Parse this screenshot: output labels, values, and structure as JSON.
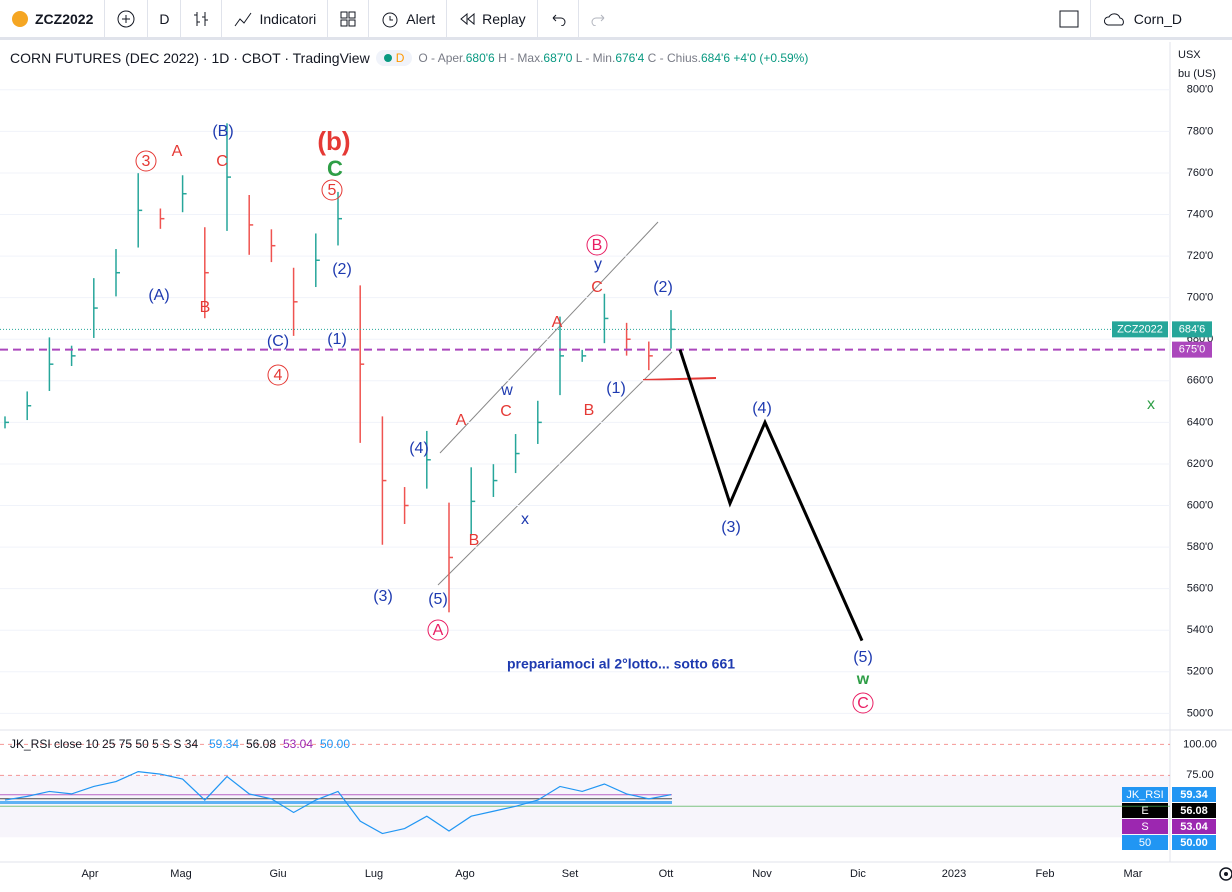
{
  "toolbar": {
    "symbol": "ZCZ2022",
    "interval": "D",
    "indicators": "Indicatori",
    "alert": "Alert",
    "replay": "Replay",
    "layout": "Corn_D"
  },
  "legend": {
    "title": "CORN FUTURES (DEC 2022) · 1D · CBOT · TradingView",
    "badge": "D",
    "open_label": "O - Aper.",
    "open": "680'6",
    "high_label": "H - Max.",
    "high": "687'0",
    "low_label": "L - Min.",
    "low": "676'4",
    "close_label": "C - Chius.",
    "close": "684'6",
    "change": "+4'0 (+0.59%)"
  },
  "price": {
    "currency": "USX",
    "unit": "bu (US)",
    "ylim": [
      492,
      823
    ],
    "yticks": [
      {
        "value": 800,
        "label": "800'0"
      },
      {
        "value": 780,
        "label": "780'0"
      },
      {
        "value": 760,
        "label": "760'0"
      },
      {
        "value": 740,
        "label": "740'0"
      },
      {
        "value": 720,
        "label": "720'0"
      },
      {
        "value": 700,
        "label": "700'0"
      },
      {
        "value": 680,
        "label": "680'0"
      },
      {
        "value": 660,
        "label": "660'0"
      },
      {
        "value": 640,
        "label": "640'0"
      },
      {
        "value": 620,
        "label": "620'0"
      },
      {
        "value": 600,
        "label": "600'0"
      },
      {
        "value": 580,
        "label": "580'0"
      },
      {
        "value": 560,
        "label": "560'0"
      },
      {
        "value": 540,
        "label": "540'0"
      },
      {
        "value": 520,
        "label": "520'0"
      },
      {
        "value": 500,
        "label": "500'0"
      }
    ],
    "values": [
      640,
      648,
      668,
      672,
      695,
      712,
      742,
      738,
      750,
      712,
      758,
      735,
      725,
      698,
      718,
      738,
      668,
      612,
      600,
      622,
      575,
      602,
      612,
      625,
      640,
      672,
      672,
      690,
      680,
      672,
      684.75
    ],
    "last_name": "ZCZ2022",
    "last": {
      "value": 684.75,
      "label": "684'6"
    },
    "level": {
      "value": 675,
      "label": "675'0"
    },
    "projection": [
      675,
      601,
      640,
      535
    ]
  },
  "annotations": [
    "3",
    "A",
    "(B)",
    "C",
    "(b)",
    "C",
    "5",
    "(2)",
    "(A)",
    "B",
    "(C)",
    "(1)",
    "4",
    "(4)",
    "(3)",
    "(5)",
    "A",
    "A",
    "B",
    "w",
    "C",
    "x",
    "A",
    "B",
    "(1)",
    "B",
    "y",
    "C",
    "(2)",
    "(4)",
    "(3)",
    "(5)",
    "w",
    "C",
    "x"
  ],
  "note": "prepariamoci al 2°lotto... sotto 661",
  "rsi": {
    "legend": "JK_RSI close 10 25 75 50 5 S S 34",
    "ylim": [
      5,
      110
    ],
    "yticks": [
      {
        "value": 100,
        "label": "100.00"
      },
      {
        "value": 75,
        "label": "75.00"
      }
    ],
    "values": [
      55,
      58,
      62,
      60,
      66,
      70,
      78,
      76,
      72,
      55,
      74,
      60,
      56,
      45,
      55,
      62,
      38,
      28,
      32,
      42,
      30,
      42,
      46,
      50,
      55,
      66,
      62,
      68,
      60,
      56,
      59.34
    ],
    "readings": [
      59.34,
      56.08,
      53.04,
      {
        "value": 50,
        "label": "50.00"
      }
    ],
    "badges": [
      "JK_RSI",
      "E",
      "S",
      "50"
    ]
  },
  "time_axis": [
    "Apr",
    "Mag",
    "Giu",
    "Lug",
    "Ago",
    "Set",
    "Ott",
    "Nov",
    "Dic",
    "2023",
    "Feb",
    "Mar"
  ]
}
